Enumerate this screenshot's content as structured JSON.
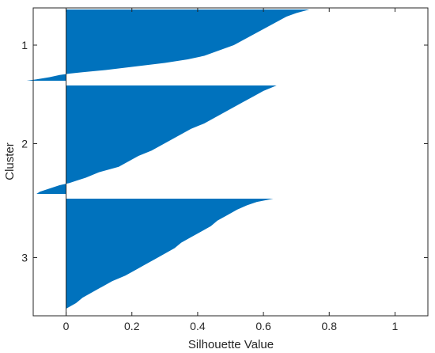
{
  "chart_data": {
    "type": "silhouette",
    "title": "",
    "xlabel": "Silhouette Value",
    "ylabel": "Cluster",
    "xlim": [
      -0.1,
      1.1
    ],
    "x_ticks": [
      "0",
      "0.2",
      "0.4",
      "0.6",
      "0.8",
      "1"
    ],
    "x_tick_values": [
      0,
      0.2,
      0.4,
      0.6,
      0.8,
      1
    ],
    "grid": false,
    "bar_color": "#0072BD",
    "clusters": [
      {
        "label": "1",
        "max_value": 0.74,
        "profile": [
          [
            0.0,
            0.74
          ],
          [
            0.05,
            0.7
          ],
          [
            0.1,
            0.67
          ],
          [
            0.15,
            0.65
          ],
          [
            0.2,
            0.63
          ],
          [
            0.25,
            0.61
          ],
          [
            0.3,
            0.59
          ],
          [
            0.35,
            0.57
          ],
          [
            0.4,
            0.55
          ],
          [
            0.45,
            0.53
          ],
          [
            0.5,
            0.51
          ],
          [
            0.55,
            0.48
          ],
          [
            0.6,
            0.45
          ],
          [
            0.65,
            0.42
          ],
          [
            0.7,
            0.37
          ],
          [
            0.75,
            0.3
          ],
          [
            0.8,
            0.21
          ],
          [
            0.85,
            0.12
          ],
          [
            0.88,
            0.05
          ],
          [
            0.9,
            0.01
          ],
          [
            0.92,
            -0.02
          ],
          [
            0.95,
            -0.05
          ],
          [
            0.98,
            -0.09
          ],
          [
            1.0,
            -0.12
          ]
        ]
      },
      {
        "label": "2",
        "max_value": 0.64,
        "profile": [
          [
            0.0,
            0.64
          ],
          [
            0.05,
            0.6
          ],
          [
            0.1,
            0.57
          ],
          [
            0.15,
            0.54
          ],
          [
            0.2,
            0.51
          ],
          [
            0.25,
            0.48
          ],
          [
            0.3,
            0.45
          ],
          [
            0.35,
            0.42
          ],
          [
            0.4,
            0.38
          ],
          [
            0.45,
            0.35
          ],
          [
            0.5,
            0.32
          ],
          [
            0.55,
            0.29
          ],
          [
            0.6,
            0.26
          ],
          [
            0.65,
            0.22
          ],
          [
            0.7,
            0.19
          ],
          [
            0.75,
            0.16
          ],
          [
            0.8,
            0.1
          ],
          [
            0.85,
            0.06
          ],
          [
            0.88,
            0.03
          ],
          [
            0.9,
            0.01
          ],
          [
            0.92,
            -0.02
          ],
          [
            0.95,
            -0.05
          ],
          [
            0.98,
            -0.08
          ],
          [
            1.0,
            -0.09
          ]
        ]
      },
      {
        "label": "3",
        "max_value": 0.63,
        "profile": [
          [
            0.0,
            0.63
          ],
          [
            0.03,
            0.58
          ],
          [
            0.06,
            0.55
          ],
          [
            0.1,
            0.52
          ],
          [
            0.15,
            0.49
          ],
          [
            0.2,
            0.46
          ],
          [
            0.25,
            0.44
          ],
          [
            0.3,
            0.41
          ],
          [
            0.35,
            0.38
          ],
          [
            0.4,
            0.35
          ],
          [
            0.45,
            0.33
          ],
          [
            0.5,
            0.3
          ],
          [
            0.55,
            0.27
          ],
          [
            0.6,
            0.24
          ],
          [
            0.65,
            0.21
          ],
          [
            0.7,
            0.18
          ],
          [
            0.75,
            0.14
          ],
          [
            0.8,
            0.11
          ],
          [
            0.85,
            0.08
          ],
          [
            0.9,
            0.05
          ],
          [
            0.95,
            0.03
          ],
          [
            1.0,
            0.0
          ]
        ]
      }
    ]
  }
}
